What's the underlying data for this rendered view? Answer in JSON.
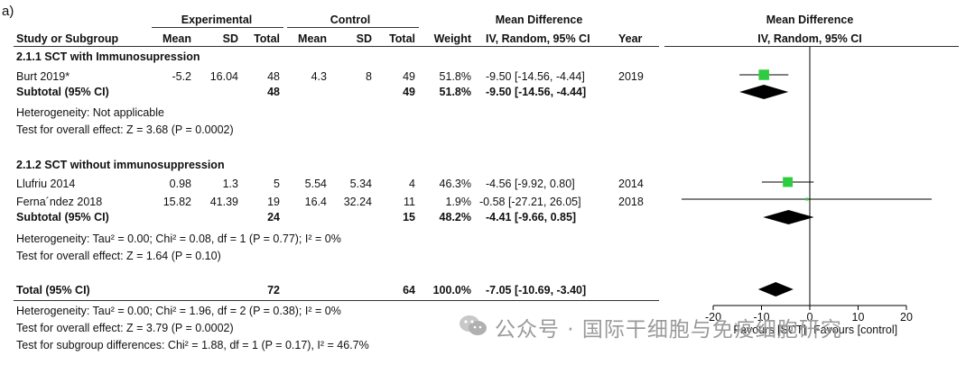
{
  "panel_label": "a)",
  "headers": {
    "experimental": "Experimental",
    "control": "Control",
    "md_left": "Mean Difference",
    "md_right": "Mean Difference",
    "study": "Study or Subgroup",
    "mean": "Mean",
    "sd": "SD",
    "total": "Total",
    "mean2": "Mean",
    "sd2": "SD",
    "total2": "Total",
    "weight": "Weight",
    "method_left": "IV, Random, 95% CI",
    "year": "Year",
    "method_right": "IV, Random, 95% CI"
  },
  "groups": [
    {
      "title": "2.1.1 SCT with Immunosupression",
      "studies": [
        {
          "name": "Burt 2019*",
          "e_mean": "-5.2",
          "e_sd": "16.04",
          "e_total": "48",
          "c_mean": "4.3",
          "c_sd": "8",
          "c_total": "49",
          "weight": "51.8%",
          "ci": "-9.50 [-14.56, -4.44]",
          "year": "2019"
        }
      ],
      "subtotal": {
        "label": "Subtotal (95% CI)",
        "e_total": "48",
        "c_total": "49",
        "weight": "51.8%",
        "ci": "-9.50 [-14.56, -4.44]"
      },
      "heterogeneity": "Heterogeneity: Not applicable",
      "overall": "Test for overall effect: Z = 3.68 (P = 0.0002)"
    },
    {
      "title": "2.1.2 SCT without immunosuppression",
      "studies": [
        {
          "name": "Llufriu 2014",
          "e_mean": "0.98",
          "e_sd": "1.3",
          "e_total": "5",
          "c_mean": "5.54",
          "c_sd": "5.34",
          "c_total": "4",
          "weight": "46.3%",
          "ci": "-4.56 [-9.92, 0.80]",
          "year": "2014"
        },
        {
          "name": "Ferna´ndez 2018",
          "e_mean": "15.82",
          "e_sd": "41.39",
          "e_total": "19",
          "c_mean": "16.4",
          "c_sd": "32.24",
          "c_total": "11",
          "weight": "1.9%",
          "ci": "-0.58 [-27.21, 26.05]",
          "year": "2018"
        }
      ],
      "subtotal": {
        "label": "Subtotal (95% CI)",
        "e_total": "24",
        "c_total": "15",
        "weight": "48.2%",
        "ci": "-4.41 [-9.66, 0.85]"
      },
      "heterogeneity": "Heterogeneity: Tau² = 0.00; Chi² = 0.08, df = 1 (P = 0.77); I² = 0%",
      "overall": "Test for overall effect: Z = 1.64 (P = 0.10)"
    }
  ],
  "total": {
    "label": "Total (95% CI)",
    "e_total": "72",
    "c_total": "64",
    "weight": "100.0%",
    "ci": "-7.05 [-10.69, -3.40]"
  },
  "footer": {
    "heterogeneity": "Heterogeneity: Tau² = 0.00; Chi² = 1.96, df = 2 (P = 0.38); I² = 0%",
    "overall": "Test for overall effect: Z = 3.79 (P = 0.0002)",
    "subgroup": "Test for subgroup differences: Chi² = 1.88, df = 1 (P = 0.17), I² = 46.7%"
  },
  "watermark": "公众号 · 国际干细胞与免疫细胞研究",
  "colors": {
    "square": "#2ecc40",
    "diamond": "#000000"
  },
  "chart_data": {
    "type": "forest",
    "x_ticks": [
      -20,
      -10,
      0,
      10,
      20
    ],
    "x_tick_labels": [
      "-20",
      "-10",
      "0",
      "10",
      "20"
    ],
    "xlim": [
      -30,
      30
    ],
    "x_label_left": "Favours [SCT]",
    "x_label_right": "Favours [control]",
    "studies": [
      {
        "name": "Burt 2019*",
        "estimate": -9.5,
        "lower": -14.56,
        "upper": -4.44,
        "weight": 51.8,
        "row": "burt"
      },
      {
        "name": "Llufriu 2014",
        "estimate": -4.56,
        "lower": -9.92,
        "upper": 0.8,
        "weight": 46.3,
        "row": "llufriu"
      },
      {
        "name": "Ferna´ndez 2018",
        "estimate": -0.58,
        "lower": -27.21,
        "upper": 26.05,
        "weight": 1.9,
        "row": "fernandez"
      }
    ],
    "diamonds": [
      {
        "name": "Subtotal 2.1.1",
        "estimate": -9.5,
        "lower": -14.56,
        "upper": -4.44,
        "row": "sub1"
      },
      {
        "name": "Subtotal 2.1.2",
        "estimate": -4.41,
        "lower": -9.66,
        "upper": 0.85,
        "row": "sub2"
      },
      {
        "name": "Total",
        "estimate": -7.05,
        "lower": -10.69,
        "upper": -3.4,
        "row": "total"
      }
    ]
  }
}
